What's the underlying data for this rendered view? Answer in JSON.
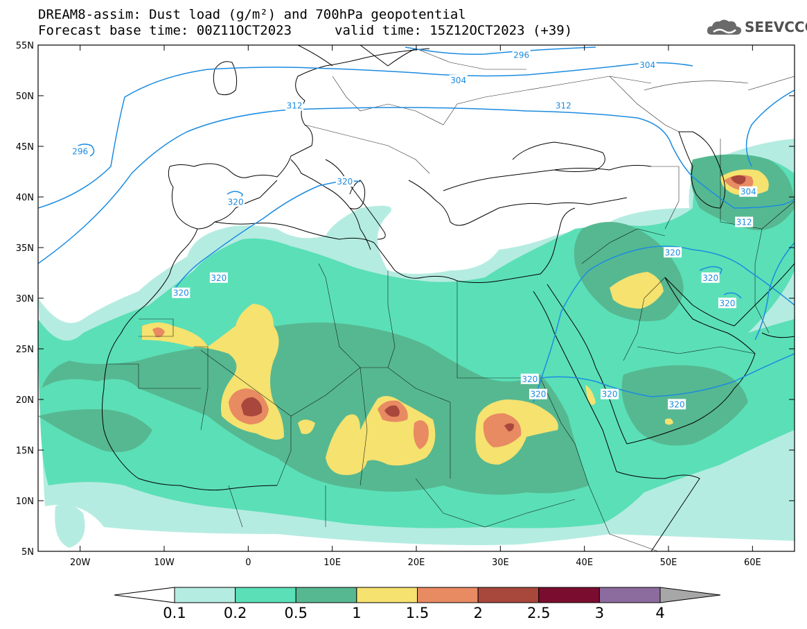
{
  "title": {
    "line1": "DREAM8-assim: Dust load (g/m²) and 700hPa geopotential",
    "line2a": "Forecast base time: 00Z11OCT2023",
    "line2b": "valid time: 15Z12OCT2023 (+39)"
  },
  "logo": {
    "text": "SEEVCCC",
    "icon": "cloud-logo-icon"
  },
  "map": {
    "lat_labels": [
      "55N",
      "50N",
      "45N",
      "40N",
      "35N",
      "30N",
      "25N",
      "20N",
      "15N",
      "10N",
      "5N"
    ],
    "lon_labels": [
      "20W",
      "10W",
      "0",
      "10E",
      "20E",
      "30E",
      "40E",
      "50E",
      "60E"
    ],
    "lon_range": [
      -25,
      65
    ],
    "lat_range": [
      5,
      55
    ],
    "contour_labels": [
      {
        "text": "296",
        "lon": -20,
        "lat": 44.5
      },
      {
        "text": "296",
        "lon": 32.5,
        "lat": 54
      },
      {
        "text": "304",
        "lon": 25,
        "lat": 51.5
      },
      {
        "text": "304",
        "lon": 47.5,
        "lat": 53
      },
      {
        "text": "312",
        "lon": 5.5,
        "lat": 49
      },
      {
        "text": "312",
        "lon": 37.5,
        "lat": 49
      },
      {
        "text": "312",
        "lon": 59,
        "lat": 37.5
      },
      {
        "text": "304",
        "lon": 59.5,
        "lat": 40.5
      },
      {
        "text": "320",
        "lon": -1.5,
        "lat": 39.5
      },
      {
        "text": "320",
        "lon": 11.5,
        "lat": 41.5
      },
      {
        "text": "320",
        "lon": -3.5,
        "lat": 32
      },
      {
        "text": "320",
        "lon": -8,
        "lat": 30.5
      },
      {
        "text": "320",
        "lon": 50.5,
        "lat": 34.5
      },
      {
        "text": "320",
        "lon": 55,
        "lat": 32
      },
      {
        "text": "320",
        "lon": 57,
        "lat": 29.5
      },
      {
        "text": "320",
        "lon": 33.5,
        "lat": 22
      },
      {
        "text": "320",
        "lon": 34.5,
        "lat": 20.5
      },
      {
        "text": "320",
        "lon": 43,
        "lat": 20.5
      },
      {
        "text": "320",
        "lon": 51,
        "lat": 19.5
      }
    ],
    "dust_hotspots": [
      {
        "lon": 0.5,
        "lat": 19.5,
        "level": 2.5
      },
      {
        "lon": 17,
        "lat": 18.8,
        "level": 2.5
      },
      {
        "lon": 30.5,
        "lat": 16.5,
        "level": 2
      },
      {
        "lon": -10.5,
        "lat": 26.5,
        "level": 1.5
      },
      {
        "lon": 58.5,
        "lat": 41.5,
        "level": 2.5
      },
      {
        "lon": 46,
        "lat": 30.5,
        "level": 1
      },
      {
        "lon": 20,
        "lat": 16,
        "level": 1.5
      }
    ]
  },
  "colorbar": {
    "levels": [
      "0.1",
      "0.2",
      "0.5",
      "1",
      "1.5",
      "2",
      "2.5",
      "3",
      "4"
    ],
    "colors": [
      "#ffffff",
      "#b5ece1",
      "#5bdfb7",
      "#56b891",
      "#f5e26f",
      "#e88a62",
      "#a8473c",
      "#7a0d2f",
      "#8c6c9e",
      "#a7a7a7"
    ]
  }
}
